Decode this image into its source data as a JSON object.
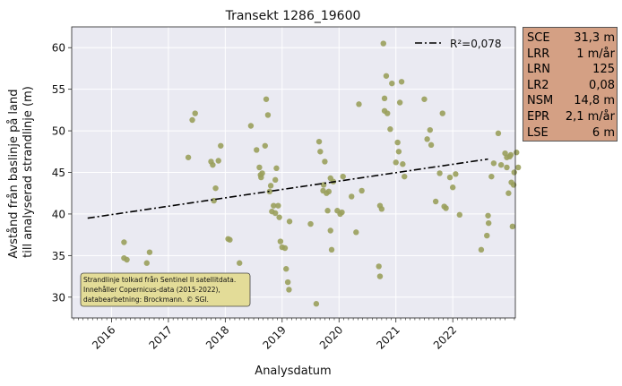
{
  "chart_data": {
    "type": "scatter",
    "title": "Transekt 1286_19600",
    "xlabel": "Analysdatum",
    "ylabel": "Avstånd från baslinje på land\ntill analyserad strandlinje (m)",
    "xlim": [
      2015.3,
      2023.1
    ],
    "ylim": [
      27.5,
      62.5
    ],
    "xticks": [
      2016,
      2017,
      2018,
      2019,
      2020,
      2021,
      2022
    ],
    "yticks": [
      30,
      35,
      40,
      45,
      50,
      55,
      60
    ],
    "grid": true,
    "legend_position": "top-right",
    "trend_line": {
      "label": "R²=0,078",
      "x": [
        2015.58,
        2022.62
      ],
      "y": [
        39.5,
        46.6
      ]
    },
    "series": [
      {
        "color": "#9aa05c",
        "points": [
          [
            2015.58,
            30.8
          ],
          [
            2016.02,
            32.3
          ],
          [
            2016.22,
            36.6
          ],
          [
            2016.22,
            34.7
          ],
          [
            2016.27,
            34.5
          ],
          [
            2016.45,
            32.5
          ],
          [
            2016.62,
            34.1
          ],
          [
            2016.67,
            35.4
          ],
          [
            2017.35,
            46.8
          ],
          [
            2017.42,
            51.3
          ],
          [
            2017.47,
            52.1
          ],
          [
            2017.75,
            46.3
          ],
          [
            2017.78,
            45.9
          ],
          [
            2017.8,
            41.6
          ],
          [
            2017.83,
            43.1
          ],
          [
            2017.88,
            46.4
          ],
          [
            2017.92,
            48.2
          ],
          [
            2018.05,
            37.0
          ],
          [
            2018.08,
            36.9
          ],
          [
            2018.25,
            34.1
          ],
          [
            2018.45,
            50.6
          ],
          [
            2018.55,
            47.7
          ],
          [
            2018.6,
            45.6
          ],
          [
            2018.62,
            44.7
          ],
          [
            2018.63,
            44.4
          ],
          [
            2018.65,
            44.9
          ],
          [
            2018.7,
            48.2
          ],
          [
            2018.72,
            53.8
          ],
          [
            2018.75,
            51.9
          ],
          [
            2018.78,
            42.7
          ],
          [
            2018.8,
            43.4
          ],
          [
            2018.82,
            40.3
          ],
          [
            2018.85,
            41.0
          ],
          [
            2018.88,
            44.1
          ],
          [
            2018.88,
            40.1
          ],
          [
            2018.9,
            45.5
          ],
          [
            2018.93,
            41.0
          ],
          [
            2018.95,
            39.6
          ],
          [
            2018.97,
            36.7
          ],
          [
            2019.0,
            36.0
          ],
          [
            2019.05,
            35.9
          ],
          [
            2019.07,
            33.4
          ],
          [
            2019.1,
            31.8
          ],
          [
            2019.12,
            30.9
          ],
          [
            2019.13,
            39.1
          ],
          [
            2019.5,
            38.8
          ],
          [
            2019.6,
            29.2
          ],
          [
            2019.65,
            48.7
          ],
          [
            2019.67,
            47.5
          ],
          [
            2019.72,
            42.8
          ],
          [
            2019.73,
            43.5
          ],
          [
            2019.75,
            46.3
          ],
          [
            2019.78,
            42.5
          ],
          [
            2019.8,
            40.4
          ],
          [
            2019.82,
            42.7
          ],
          [
            2019.85,
            44.3
          ],
          [
            2019.85,
            38.0
          ],
          [
            2019.87,
            35.7
          ],
          [
            2019.9,
            43.9
          ],
          [
            2019.97,
            40.4
          ],
          [
            2020.02,
            40.0
          ],
          [
            2020.05,
            40.2
          ],
          [
            2020.07,
            44.5
          ],
          [
            2020.22,
            42.1
          ],
          [
            2020.3,
            37.8
          ],
          [
            2020.35,
            53.2
          ],
          [
            2020.4,
            42.8
          ],
          [
            2020.7,
            33.7
          ],
          [
            2020.72,
            32.5
          ],
          [
            2020.72,
            41.0
          ],
          [
            2020.75,
            40.6
          ],
          [
            2020.78,
            60.5
          ],
          [
            2020.8,
            52.4
          ],
          [
            2020.8,
            53.9
          ],
          [
            2020.83,
            56.6
          ],
          [
            2020.85,
            52.1
          ],
          [
            2020.9,
            50.2
          ],
          [
            2020.93,
            55.7
          ],
          [
            2021.0,
            46.2
          ],
          [
            2021.03,
            48.6
          ],
          [
            2021.05,
            47.5
          ],
          [
            2021.07,
            53.4
          ],
          [
            2021.1,
            55.9
          ],
          [
            2021.12,
            46.0
          ],
          [
            2021.15,
            44.5
          ],
          [
            2021.5,
            53.8
          ],
          [
            2021.55,
            49.0
          ],
          [
            2021.6,
            50.1
          ],
          [
            2021.62,
            48.3
          ],
          [
            2021.7,
            41.5
          ],
          [
            2021.77,
            44.9
          ],
          [
            2021.82,
            52.1
          ],
          [
            2021.85,
            40.9
          ],
          [
            2021.88,
            40.7
          ],
          [
            2021.95,
            44.4
          ],
          [
            2022.0,
            43.2
          ],
          [
            2022.05,
            44.8
          ],
          [
            2022.12,
            39.9
          ],
          [
            2022.5,
            35.7
          ],
          [
            2022.6,
            37.4
          ],
          [
            2022.62,
            39.8
          ],
          [
            2022.63,
            38.9
          ],
          [
            2022.68,
            44.5
          ],
          [
            2022.72,
            46.1
          ],
          [
            2022.8,
            49.7
          ],
          [
            2022.85,
            45.9
          ],
          [
            2022.92,
            47.3
          ],
          [
            2022.95,
            45.6
          ],
          [
            2022.98,
            42.5
          ],
          [
            2023.0,
            46.9
          ],
          [
            2023.02,
            47.1
          ],
          [
            2023.03,
            43.8
          ],
          [
            2023.05,
            38.5
          ],
          [
            2023.08,
            45.0
          ],
          [
            2022.95,
            46.8
          ],
          [
            2023.07,
            43.5
          ],
          [
            2023.12,
            47.4
          ],
          [
            2023.15,
            45.6
          ]
        ]
      }
    ]
  },
  "stats": [
    {
      "key": "SCE",
      "value": "31,3 m"
    },
    {
      "key": "LRR",
      "value": "1 m/år"
    },
    {
      "key": "LRN",
      "value": "125"
    },
    {
      "key": "LR2",
      "value": "0,08"
    },
    {
      "key": "NSM",
      "value": "14,8 m"
    },
    {
      "key": "EPR",
      "value": "2,1 m/år"
    },
    {
      "key": "LSE",
      "value": "6 m"
    }
  ],
  "note": {
    "lines": [
      "Strandlinje tolkad från Sentinel II satellitdata.",
      "Innehåller Copernicus-data (2015-2022),",
      "databearbetning: Brockmann. © SGI."
    ]
  },
  "colors": {
    "plot_background": "#eaeaf2",
    "point": "#9aa05c",
    "trend_line": "#000000",
    "stats_box": "#d4a084",
    "note_box": "#e3dc98"
  }
}
